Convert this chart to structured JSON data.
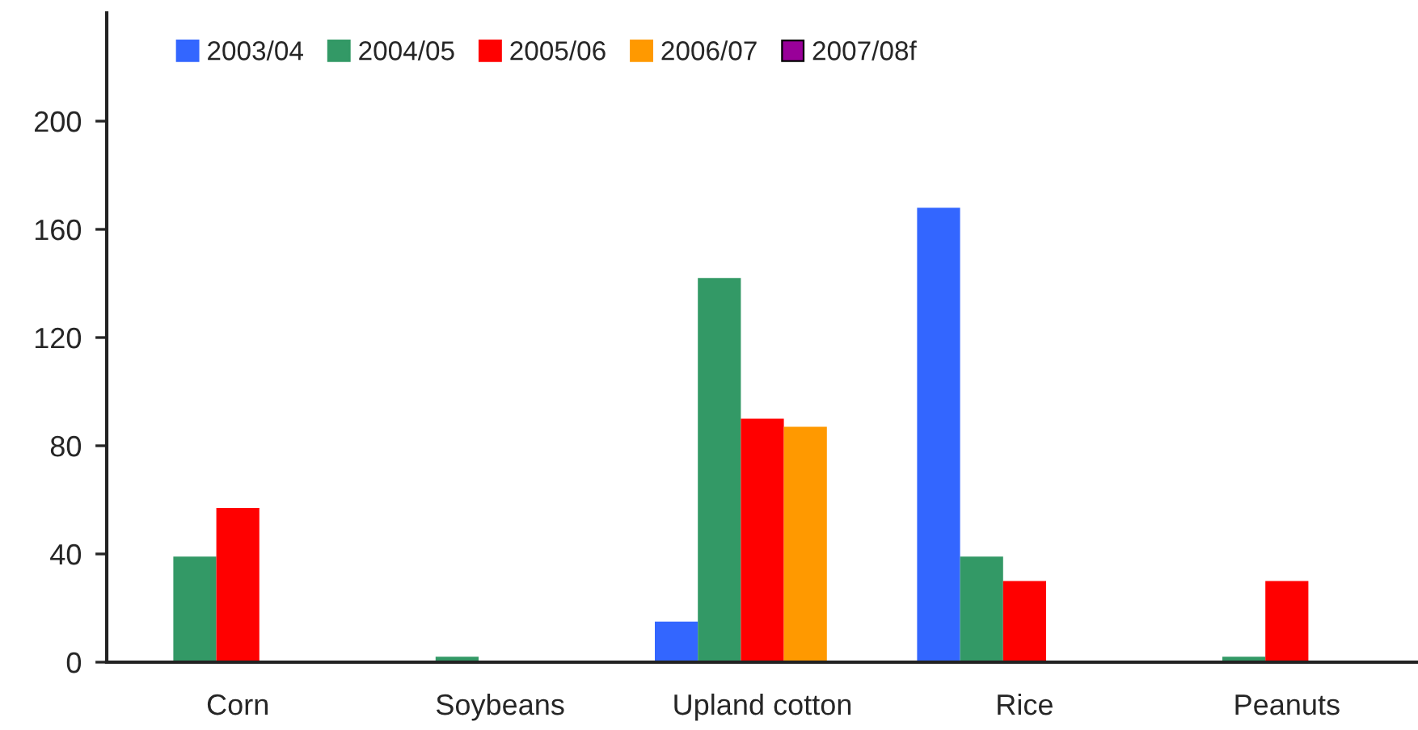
{
  "chart_data": {
    "type": "bar",
    "categories": [
      "Corn",
      "Soybeans",
      "Upland cotton",
      "Rice",
      "Peanuts"
    ],
    "series": [
      {
        "name": "2003/04",
        "color": "#3366ff",
        "values": [
          null,
          null,
          15,
          168,
          null
        ]
      },
      {
        "name": "2004/05",
        "color": "#339966",
        "values": [
          39,
          2,
          142,
          39,
          2
        ]
      },
      {
        "name": "2005/06",
        "color": "#ff0000",
        "values": [
          57,
          null,
          90,
          30,
          30
        ]
      },
      {
        "name": "2006/07",
        "color": "#ff9900",
        "values": [
          null,
          null,
          87,
          null,
          null
        ]
      },
      {
        "name": "2007/08f",
        "color": "#990099",
        "values": [
          null,
          null,
          null,
          null,
          null
        ]
      }
    ],
    "ylim": [
      0,
      240
    ],
    "yticks": [
      0,
      40,
      80,
      120,
      160,
      200
    ],
    "grid": false,
    "legend": "top left"
  }
}
